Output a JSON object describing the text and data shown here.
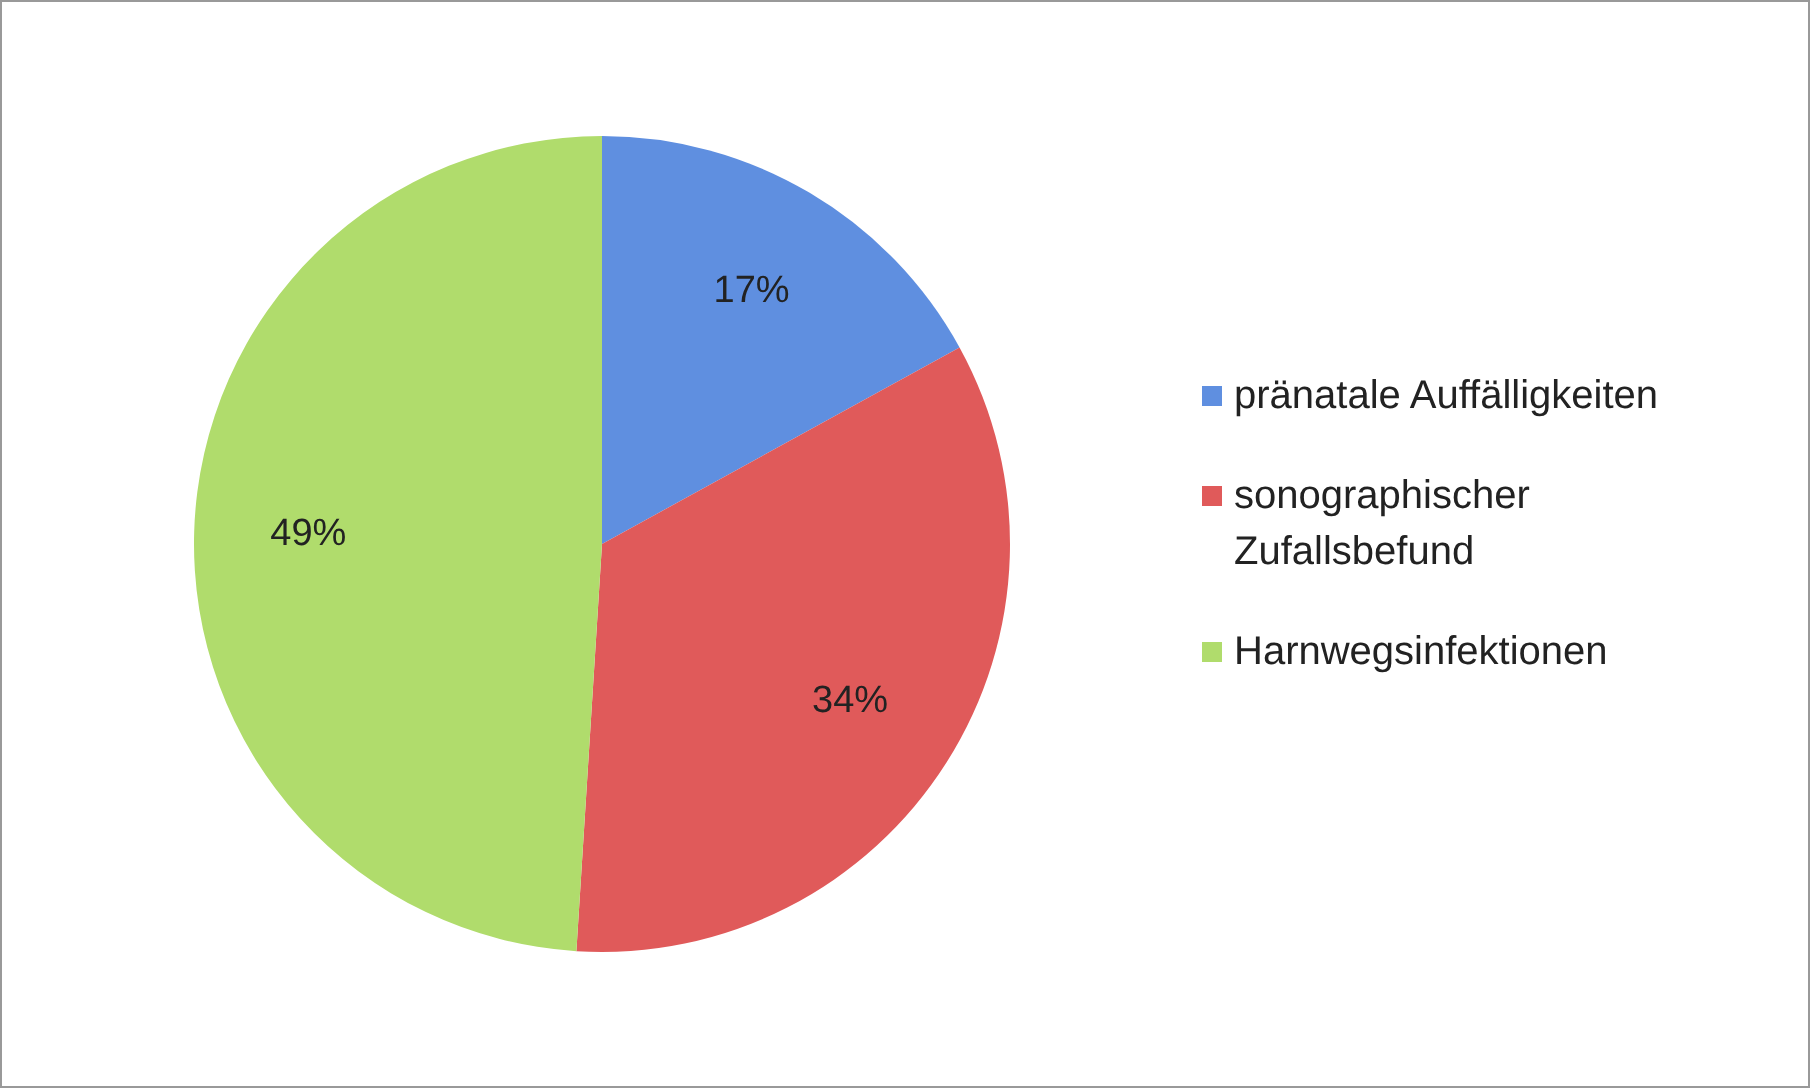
{
  "chart_data": {
    "type": "pie",
    "categories": [
      "pränatale Auffälligkeiten",
      "sonographischer Zufallsbefund",
      "Harnwegsinfektionen"
    ],
    "values": [
      17,
      34,
      49
    ],
    "value_labels": [
      "17%",
      "34%",
      "49%"
    ],
    "colors": [
      "#5f8fe0",
      "#e05a5a",
      "#b0dc6c"
    ],
    "legend": "right"
  }
}
